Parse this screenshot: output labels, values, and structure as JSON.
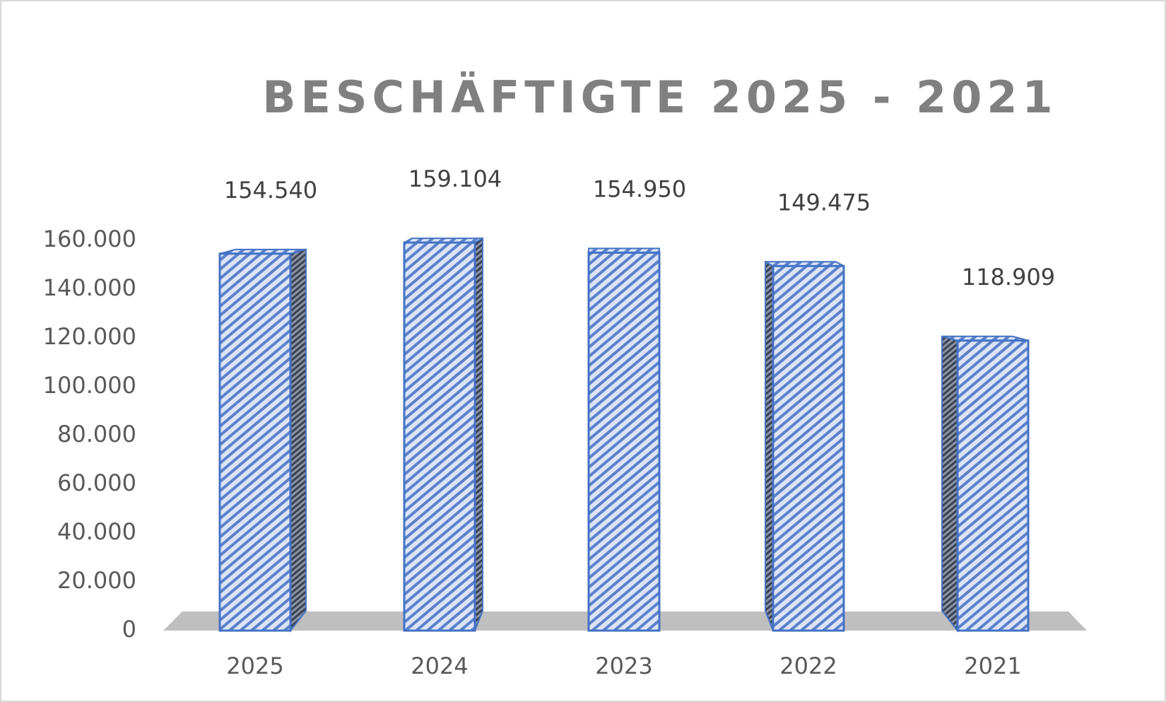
{
  "chart_data": {
    "type": "bar",
    "title": "BESCHÄFTIGTE 2025 - 2021",
    "categories": [
      "2025",
      "2024",
      "2023",
      "2022",
      "2021"
    ],
    "values": [
      154540,
      159104,
      154950,
      149475,
      118909
    ],
    "value_labels": [
      "154.540",
      "159.104",
      "154.950",
      "149.475",
      "118.909"
    ],
    "color": "#4472c4",
    "ylim": [
      0,
      160000
    ],
    "yticks": [
      0,
      {
        "value": 20000,
        "label": "20.000"
      },
      {
        "value": 40000,
        "label": "40.000"
      },
      {
        "value": 60000,
        "label": "60.000"
      },
      {
        "value": 80000,
        "label": "80.000"
      },
      {
        "value": 100000,
        "label": "100.000"
      },
      {
        "value": 120000,
        "label": "120.000"
      },
      {
        "value": 140000,
        "label": "140.000"
      },
      {
        "value": 160000,
        "label": "160.000"
      }
    ],
    "grid": false
  }
}
